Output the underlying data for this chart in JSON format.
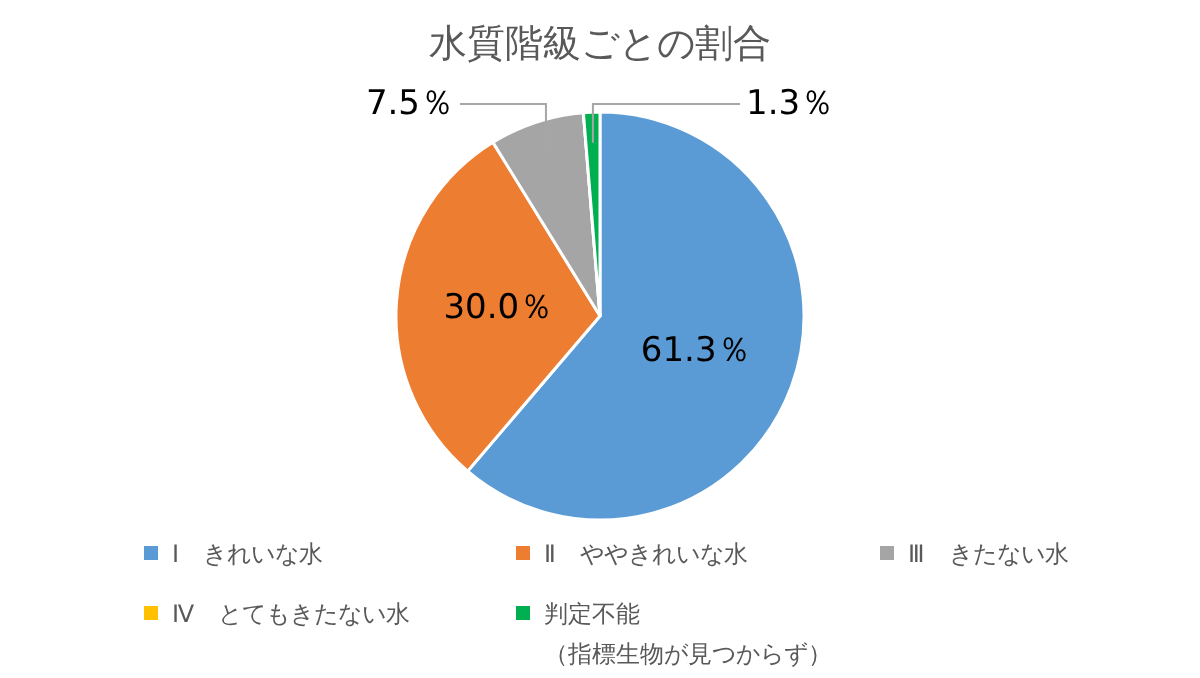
{
  "chart_data": {
    "type": "pie",
    "title": "水質階級ごとの割合",
    "categories": [
      "Ⅰ　きれいな水",
      "Ⅱ　ややきれいな水",
      "Ⅲ　きたない水",
      "Ⅳ　とてもきたない水",
      "判定不能（指標生物が見つからず）"
    ],
    "values": [
      61.3,
      30.0,
      7.5,
      0,
      1.3
    ],
    "colors": [
      "#5b9bd5",
      "#ed7d31",
      "#a5a5a5",
      "#ffc000",
      "#00b050"
    ],
    "value_labels": [
      "61.3％",
      "30.0％",
      "7.5％",
      null,
      "1.3％"
    ],
    "legend": "bottom"
  }
}
